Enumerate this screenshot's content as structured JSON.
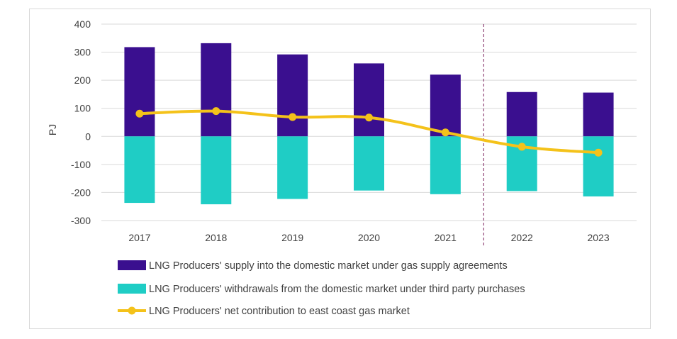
{
  "chart_data": {
    "type": "bar",
    "title": "",
    "xlabel": "",
    "ylabel": "PJ",
    "ylim": [
      -300,
      400
    ],
    "yticks": [
      400,
      300,
      200,
      100,
      0,
      -100,
      -200,
      -300
    ],
    "categories": [
      "2017",
      "2018",
      "2019",
      "2020",
      "2021",
      "2022",
      "2023"
    ],
    "series": [
      {
        "name": "LNG Producers' supply into the domestic market under gas supply agreements",
        "kind": "bar",
        "color": "#3a0f8f",
        "values": [
          318,
          332,
          292,
          260,
          220,
          158,
          156
        ]
      },
      {
        "name": "LNG Producers' withdrawals from the domestic market under third party purchases",
        "kind": "bar",
        "color": "#1fcdc5",
        "values": [
          -237,
          -242,
          -223,
          -193,
          -206,
          -195,
          -214
        ]
      },
      {
        "name": "LNG Producers' net contribution to east coast gas market",
        "kind": "line",
        "color": "#f4c21a",
        "values": [
          81,
          90,
          69,
          67,
          14,
          -37,
          -58
        ]
      }
    ],
    "divider_after": "2021",
    "grid": true,
    "legend_position": "bottom"
  }
}
